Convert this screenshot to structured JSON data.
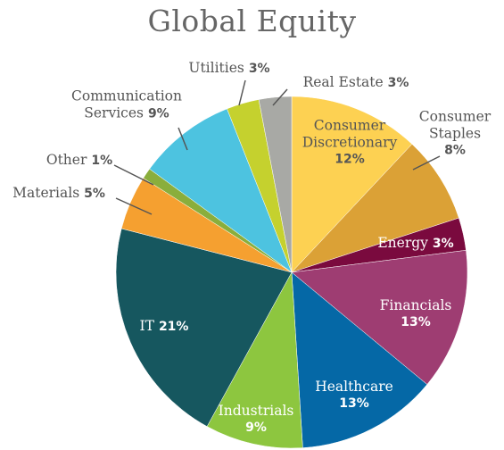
{
  "chart_data": {
    "type": "pie",
    "title": "Global Equity",
    "categories": [
      "Consumer Discretionary",
      "Consumer Staples",
      "Energy",
      "Financials",
      "Healthcare",
      "Industrials",
      "IT",
      "Materials",
      "Other",
      "Communication Services",
      "Utilities",
      "Real Estate"
    ],
    "values": [
      12,
      8,
      3,
      13,
      13,
      9,
      21,
      5,
      1,
      9,
      3,
      3
    ],
    "value_labels": [
      "12%",
      "8%",
      "3%",
      "13%",
      "13%",
      "9%",
      "21%",
      "5%",
      "1%",
      "9%",
      "3%",
      "3%"
    ],
    "colors": [
      "#fdd152",
      "#dba136",
      "#7a0a3e",
      "#9e3d72",
      "#0568a6",
      "#8dc63f",
      "#16575f",
      "#f5a030",
      "#8aae3c",
      "#4dc3e0",
      "#c5d12e",
      "#a8a9a5"
    ]
  }
}
